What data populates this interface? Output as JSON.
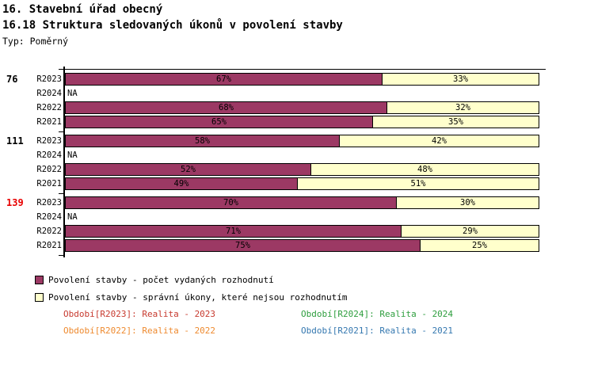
{
  "header": {
    "title_line1": "16. Stavební úřad obecný",
    "title_line2": "16.18 Struktura sledovaných úkonů v povolení stavby",
    "type_label": "Typ: Poměrný"
  },
  "chart_data": {
    "type": "bar",
    "orientation": "horizontal",
    "stacked": true,
    "unit": "%",
    "xlim": [
      0,
      100
    ],
    "series": [
      {
        "name": "Povolení stavby - počet vydaných rozhodnutí",
        "color": "#9C3964"
      },
      {
        "name": "Povolení stavby - správní úkony, které nejsou rozhodnutím",
        "color": "#FFFFCC"
      }
    ],
    "groups": [
      {
        "label": "76",
        "label_color": "#000000",
        "rows": [
          {
            "period": "R2023",
            "decisions_pct": 67,
            "other_pct": 33
          },
          {
            "period": "R2024",
            "na": true,
            "na_label": "NA"
          },
          {
            "period": "R2022",
            "decisions_pct": 68,
            "other_pct": 32
          },
          {
            "period": "R2021",
            "decisions_pct": 65,
            "other_pct": 35
          }
        ]
      },
      {
        "label": "111",
        "label_color": "#000000",
        "rows": [
          {
            "period": "R2023",
            "decisions_pct": 58,
            "other_pct": 42
          },
          {
            "period": "R2024",
            "na": true,
            "na_label": "NA"
          },
          {
            "period": "R2022",
            "decisions_pct": 52,
            "other_pct": 48
          },
          {
            "period": "R2021",
            "decisions_pct": 49,
            "other_pct": 51
          }
        ]
      },
      {
        "label": "139",
        "label_color": "#E80000",
        "rows": [
          {
            "period": "R2023",
            "decisions_pct": 70,
            "other_pct": 30
          },
          {
            "period": "R2024",
            "na": true,
            "na_label": "NA"
          },
          {
            "period": "R2022",
            "decisions_pct": 71,
            "other_pct": 29
          },
          {
            "period": "R2021",
            "decisions_pct": 75,
            "other_pct": 25
          }
        ]
      }
    ]
  },
  "period_legend": {
    "items": [
      {
        "label": "Období[R2023]: Realita - 2023",
        "color": "#C73A2F"
      },
      {
        "label": "Období[R2024]: Realita - 2024",
        "color": "#2E9E3E"
      },
      {
        "label": "Období[R2022]: Realita - 2022",
        "color": "#EE8A2F"
      },
      {
        "label": "Období[R2021]: Realita - 2021",
        "color": "#3578B0"
      }
    ]
  }
}
